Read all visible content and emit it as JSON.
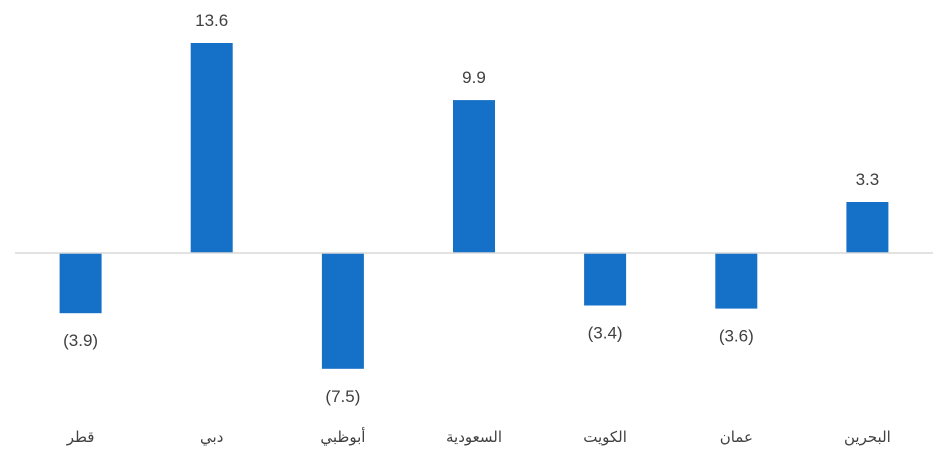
{
  "chart_data": {
    "type": "bar",
    "categories": [
      "قطر",
      "دبي",
      "أبوظبي",
      "السعودية",
      "الكويت",
      "عمان",
      "البحرين"
    ],
    "values": [
      -3.9,
      13.6,
      -7.5,
      9.9,
      -3.4,
      -3.6,
      3.3
    ],
    "data_labels": [
      "(3.9)",
      "13.6",
      "(7.5)",
      "9.9",
      "(3.4)",
      "(3.6)",
      "3.3"
    ],
    "title": "",
    "xlabel": "",
    "ylabel": "",
    "ylim": [
      -7.5,
      13.6
    ],
    "grid": false,
    "legend": "none",
    "bar_color": "#1570C8",
    "axis_color": "#D9D9D9",
    "label_color": "#404040"
  }
}
